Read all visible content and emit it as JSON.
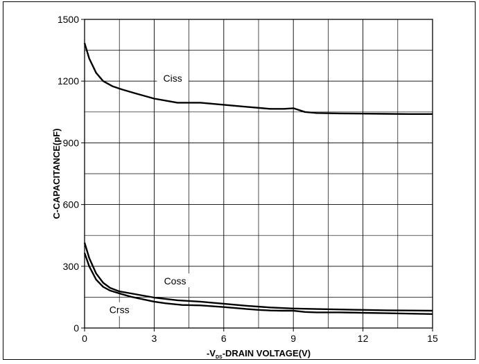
{
  "chart_data": {
    "type": "line",
    "title": "",
    "xlabel": "-VDS-DRAIN VOLTAGE(V)",
    "xlabel_parts": {
      "prefix": "-V",
      "subscript": "DS",
      "suffix": "-DRAIN VOLTAGE(V)"
    },
    "ylabel": "C-CAPACITANCE(pF)",
    "xlim": [
      0,
      15
    ],
    "ylim": [
      0,
      1500
    ],
    "grid": true,
    "major_x_ticks": [
      0,
      3,
      6,
      9,
      12,
      15
    ],
    "major_y_ticks": [
      0,
      300,
      600,
      900,
      1200,
      1500
    ],
    "x_tick_labels": [
      "0",
      "3",
      "6",
      "9",
      "12",
      "15"
    ],
    "y_tick_labels": [
      "0",
      "300",
      "600",
      "900",
      "1200",
      "1500"
    ],
    "grid_x": [
      1.5,
      3,
      4.5,
      6,
      7.5,
      9,
      10.5,
      12,
      13.5
    ],
    "grid_y": [
      150,
      300,
      450,
      600,
      750,
      900,
      1050,
      1200,
      1350
    ],
    "series": [
      {
        "name": "Ciss",
        "x": [
          0,
          0.2,
          0.5,
          0.8,
          1.2,
          1.6,
          2.2,
          3,
          4,
          5,
          6,
          7,
          8,
          8.6,
          9,
          9.5,
          10,
          11,
          12,
          13,
          14,
          15
        ],
        "values": [
          1385,
          1310,
          1240,
          1200,
          1175,
          1160,
          1140,
          1115,
          1095,
          1095,
          1085,
          1075,
          1065,
          1065,
          1068,
          1050,
          1045,
          1043,
          1042,
          1041,
          1040,
          1040
        ],
        "label_at": {
          "x": 3.8,
          "y": 1210
        }
      },
      {
        "name": "Coss",
        "x": [
          0,
          0.2,
          0.5,
          0.8,
          1.1,
          1.5,
          2,
          3,
          4,
          5,
          6,
          7,
          8,
          9,
          10,
          11,
          12,
          13,
          14,
          15
        ],
        "values": [
          415,
          340,
          265,
          220,
          195,
          178,
          168,
          148,
          135,
          128,
          118,
          108,
          100,
          95,
          92,
          90,
          88,
          86,
          85,
          84
        ],
        "label_at": {
          "x": 3.9,
          "y": 225
        }
      },
      {
        "name": "Crss",
        "x": [
          0,
          0.2,
          0.5,
          0.8,
          1.1,
          1.5,
          2,
          3,
          3.5,
          4.2,
          5,
          6,
          7,
          7.5,
          8,
          8.5,
          9,
          9.5,
          10,
          10.5,
          11,
          12,
          13,
          14,
          15
        ],
        "values": [
          365,
          300,
          235,
          200,
          182,
          168,
          152,
          128,
          120,
          112,
          110,
          102,
          92,
          88,
          85,
          84,
          84,
          78,
          76,
          76,
          76,
          74,
          72,
          70,
          68
        ],
        "label_at": {
          "x": 1.5,
          "y": 85
        }
      }
    ]
  }
}
